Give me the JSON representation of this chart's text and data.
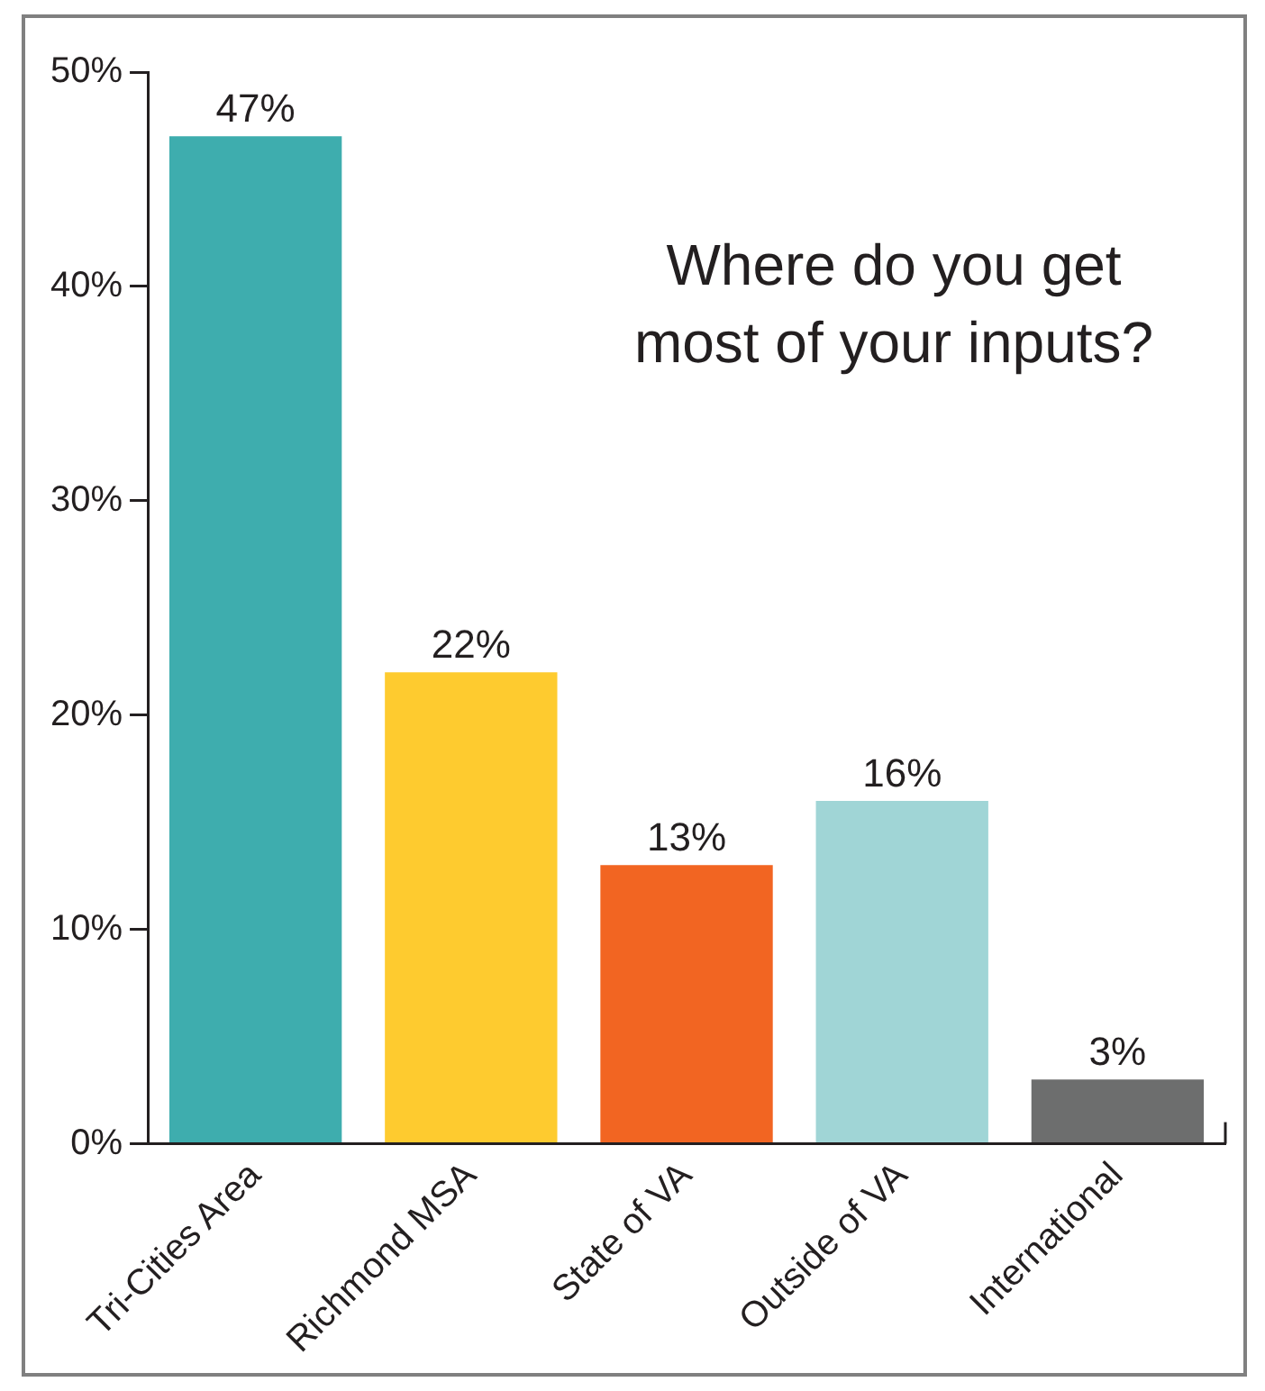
{
  "chart_data": {
    "type": "bar",
    "title": "Where do you get most of your inputs?",
    "categories": [
      "Tri-Cities Area",
      "Richmond MSA",
      "State of VA",
      "Outside of VA",
      "International"
    ],
    "values": [
      47,
      22,
      13,
      16,
      3
    ],
    "value_labels": [
      "47%",
      "22%",
      "13%",
      "16%",
      "3%"
    ],
    "colors": [
      "#3eadae",
      "#fecb2f",
      "#f26522",
      "#a0d5d6",
      "#6d6e6e"
    ],
    "ylim": [
      0,
      50
    ],
    "yticks": [
      {
        "value": 0,
        "label": "0%"
      },
      {
        "value": 10,
        "label": "10%"
      },
      {
        "value": 20,
        "label": "20%"
      },
      {
        "value": 30,
        "label": "30%"
      },
      {
        "value": 40,
        "label": "40%"
      },
      {
        "value": 50,
        "label": "50%"
      }
    ],
    "grid": false,
    "legend": false
  }
}
